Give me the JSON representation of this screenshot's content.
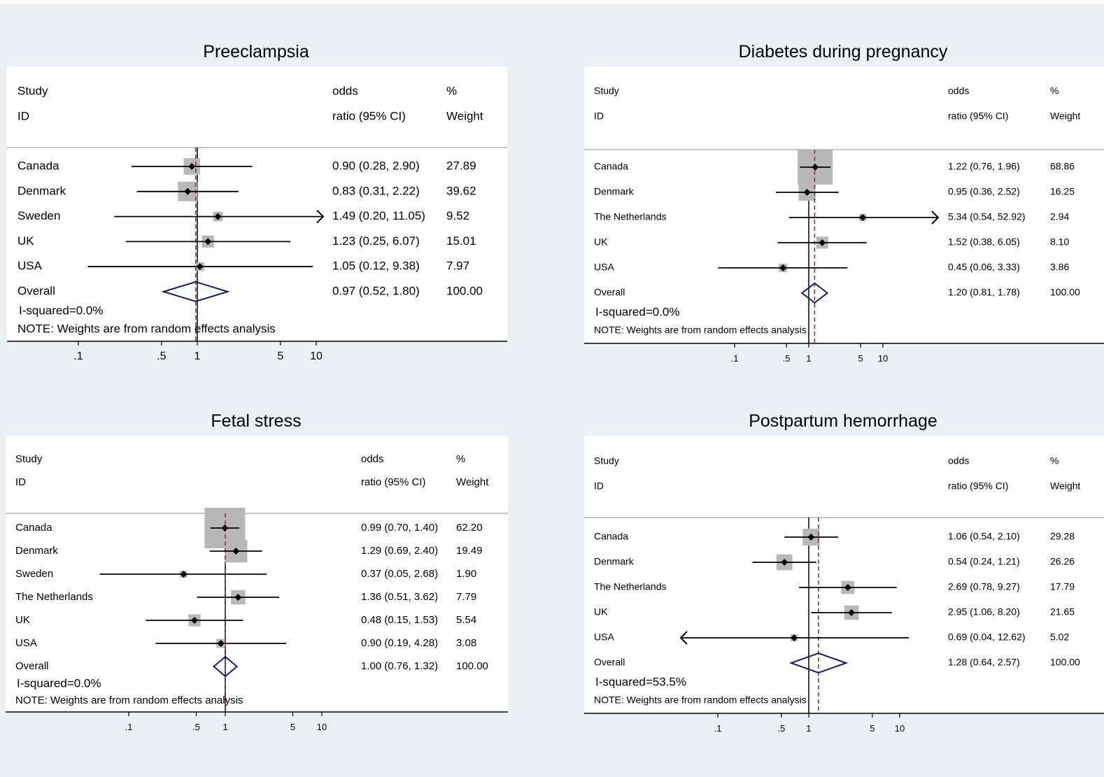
{
  "chart_data": [
    {
      "type": "forest",
      "title": "Preeclampsia",
      "headers": {
        "study": "Study",
        "id": "ID",
        "or_top": "odds",
        "or_bottom": "ratio (95% CI)",
        "w_top": "%",
        "w_bottom": "Weight"
      },
      "x_ticks": [
        0.1,
        0.5,
        1,
        5,
        10
      ],
      "x_tick_labels": [
        ".1",
        ".5",
        "1",
        "5",
        "10"
      ],
      "log_scale": true,
      "studies": [
        {
          "name": "Canada",
          "or": 0.9,
          "lo": 0.28,
          "hi": 2.9,
          "or_text": "0.90 (0.28, 2.90)",
          "weight": 27.89,
          "weight_text": "27.89"
        },
        {
          "name": "Denmark",
          "or": 0.83,
          "lo": 0.31,
          "hi": 2.22,
          "or_text": "0.83 (0.31, 2.22)",
          "weight": 39.62,
          "weight_text": "39.62"
        },
        {
          "name": "Sweden",
          "or": 1.49,
          "lo": 0.2,
          "hi": 11.05,
          "or_text": "1.49 (0.20, 11.05)",
          "weight": 9.52,
          "weight_text": "9.52",
          "arrow_right": true
        },
        {
          "name": "UK",
          "or": 1.23,
          "lo": 0.25,
          "hi": 6.07,
          "or_text": "1.23 (0.25, 6.07)",
          "weight": 15.01,
          "weight_text": "15.01"
        },
        {
          "name": "USA",
          "or": 1.05,
          "lo": 0.12,
          "hi": 9.38,
          "or_text": "1.05 (0.12, 9.38)",
          "weight": 7.97,
          "weight_text": "7.97"
        }
      ],
      "overall": {
        "name": "Overall",
        "or": 0.97,
        "lo": 0.52,
        "hi": 1.8,
        "or_text": "0.97 (0.52, 1.80)",
        "weight_text": "100.00"
      },
      "i_squared": "I-squared=0.0%",
      "note": "NOTE: Weights are from random effects analysis"
    },
    {
      "type": "forest",
      "title": "Diabetes during pregnancy",
      "headers": {
        "study": "Study",
        "id": "ID",
        "or_top": "odds",
        "or_bottom": "ratio (95% CI)",
        "w_top": "%",
        "w_bottom": "Weight"
      },
      "x_ticks": [
        0.1,
        0.5,
        1,
        5,
        10
      ],
      "x_tick_labels": [
        ".1",
        ".5",
        "1",
        "5",
        "10"
      ],
      "log_scale": true,
      "studies": [
        {
          "name": "Canada",
          "or": 1.22,
          "lo": 0.76,
          "hi": 1.96,
          "or_text": "1.22 (0.76, 1.96)",
          "weight": 68.86,
          "weight_text": "68.86"
        },
        {
          "name": "Denmark",
          "or": 0.95,
          "lo": 0.36,
          "hi": 2.52,
          "or_text": "0.95 (0.36, 2.52)",
          "weight": 16.25,
          "weight_text": "16.25"
        },
        {
          "name": "The Netherlands",
          "or": 5.34,
          "lo": 0.54,
          "hi": 52.92,
          "or_text": "5.34 (0.54, 52.92)",
          "weight": 2.94,
          "weight_text": "2.94",
          "arrow_right": true
        },
        {
          "name": "UK",
          "or": 1.52,
          "lo": 0.38,
          "hi": 6.05,
          "or_text": "1.52 (0.38, 6.05)",
          "weight": 8.1,
          "weight_text": "8.10"
        },
        {
          "name": "USA",
          "or": 0.45,
          "lo": 0.06,
          "hi": 3.33,
          "or_text": "0.45 (0.06, 3.33)",
          "weight": 3.86,
          "weight_text": "3.86"
        }
      ],
      "overall": {
        "name": "Overall",
        "or": 1.2,
        "lo": 0.81,
        "hi": 1.78,
        "or_text": "1.20 (0.81, 1.78)",
        "weight_text": "100.00"
      },
      "i_squared": "I-squared=0.0%",
      "note": "NOTE: Weights are from random effects analysis"
    },
    {
      "type": "forest",
      "title": "Fetal stress",
      "headers": {
        "study": "Study",
        "id": "ID",
        "or_top": "odds",
        "or_bottom": "ratio (95% CI)",
        "w_top": "%",
        "w_bottom": "Weight"
      },
      "x_ticks": [
        0.1,
        0.5,
        1,
        5,
        10
      ],
      "x_tick_labels": [
        ".1",
        ".5",
        "1",
        "5",
        "10"
      ],
      "log_scale": true,
      "studies": [
        {
          "name": "Canada",
          "or": 0.99,
          "lo": 0.7,
          "hi": 1.4,
          "or_text": "0.99 (0.70, 1.40)",
          "weight": 62.2,
          "weight_text": "62.20"
        },
        {
          "name": "Denmark",
          "or": 1.29,
          "lo": 0.69,
          "hi": 2.4,
          "or_text": "1.29 (0.69, 2.40)",
          "weight": 19.49,
          "weight_text": "19.49"
        },
        {
          "name": "Sweden",
          "or": 0.37,
          "lo": 0.05,
          "hi": 2.68,
          "or_text": "0.37 (0.05, 2.68)",
          "weight": 1.9,
          "weight_text": "1.90"
        },
        {
          "name": "The Netherlands",
          "or": 1.36,
          "lo": 0.51,
          "hi": 3.62,
          "or_text": "1.36 (0.51, 3.62)",
          "weight": 7.79,
          "weight_text": "7.79"
        },
        {
          "name": "UK",
          "or": 0.48,
          "lo": 0.15,
          "hi": 1.53,
          "or_text": "0.48 (0.15, 1.53)",
          "weight": 5.54,
          "weight_text": "5.54"
        },
        {
          "name": "USA",
          "or": 0.9,
          "lo": 0.19,
          "hi": 4.28,
          "or_text": "0.90 (0.19, 4.28)",
          "weight": 3.08,
          "weight_text": "3.08"
        }
      ],
      "overall": {
        "name": "Overall",
        "or": 1.0,
        "lo": 0.76,
        "hi": 1.32,
        "or_text": "1.00 (0.76, 1.32)",
        "weight_text": "100.00"
      },
      "i_squared": "I-squared=0.0%",
      "note": "NOTE: Weights are from random effects analysis"
    },
    {
      "type": "forest",
      "title": "Postpartum hemorrhage",
      "headers": {
        "study": "Study",
        "id": "ID",
        "or_top": "odds",
        "or_bottom": "ratio (95% CI)",
        "w_top": "%",
        "w_bottom": "Weight"
      },
      "x_ticks": [
        0.1,
        0.5,
        1,
        5,
        10
      ],
      "x_tick_labels": [
        ".1",
        ".5",
        "1",
        "5",
        "10"
      ],
      "log_scale": true,
      "studies": [
        {
          "name": "Canada",
          "or": 1.06,
          "lo": 0.54,
          "hi": 2.1,
          "or_text": "1.06 (0.54, 2.10)",
          "weight": 29.28,
          "weight_text": "29.28"
        },
        {
          "name": "Denmark",
          "or": 0.54,
          "lo": 0.24,
          "hi": 1.21,
          "or_text": "0.54 (0.24, 1.21)",
          "weight": 26.26,
          "weight_text": "26.26"
        },
        {
          "name": "The Netherlands",
          "or": 2.69,
          "lo": 0.78,
          "hi": 9.27,
          "or_text": "2.69 (0.78, 9.27)",
          "weight": 17.79,
          "weight_text": "17.79"
        },
        {
          "name": "UK",
          "or": 2.95,
          "lo": 1.06,
          "hi": 8.2,
          "or_text": "2.95 (1.06, 8.20)",
          "weight": 21.65,
          "weight_text": "21.65"
        },
        {
          "name": "USA",
          "or": 0.69,
          "lo": 0.04,
          "hi": 12.62,
          "or_text": "0.69 (0.04, 12.62)",
          "weight": 5.02,
          "weight_text": "5.02",
          "arrow_left": true
        }
      ],
      "overall": {
        "name": "Overall",
        "or": 1.28,
        "lo": 0.64,
        "hi": 2.57,
        "or_text": "1.28 (0.64, 2.57)",
        "weight_text": "100.00"
      },
      "i_squared": "I-squared=53.5%",
      "note": "NOTE: Weights are from random effects analysis"
    }
  ],
  "colors": {
    "background": "#e9f1f4",
    "panel": "#ffffff",
    "weight_box": "#b8b8b8",
    "overall_diamond": "#1a1a6e",
    "overall_dashed_line": "#8b2a2a",
    "ci_line": "#000000"
  }
}
